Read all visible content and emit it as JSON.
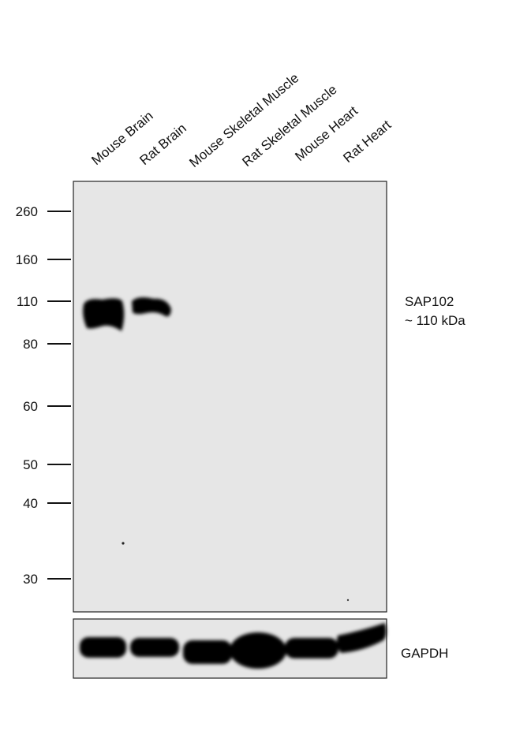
{
  "lanes": [
    "Mouse Brain",
    "Rat Brain",
    "Mouse Skeletal Muscle",
    "Rat Skeletal Muscle",
    "Mouse Heart",
    "Rat Heart"
  ],
  "markers": [
    "260",
    "160",
    "110",
    "80",
    "60",
    "50",
    "40",
    "30"
  ],
  "blot": {
    "target": "SAP102",
    "size": "~ 110 kDa"
  },
  "loading_control": {
    "label": "GAPDH"
  }
}
